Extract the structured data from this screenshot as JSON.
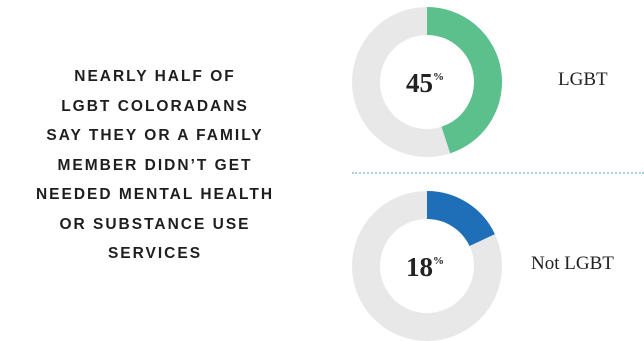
{
  "headline": [
    "NEARLY HALF OF",
    "LGBT COLORADANS",
    "SAY THEY OR A FAMILY",
    "MEMBER DIDN’T GET",
    "NEEDED MENTAL HEALTH",
    "OR SUBSTANCE USE",
    "SERVICES"
  ],
  "chart_data": {
    "type": "pie",
    "style": "donut",
    "unit": "%",
    "series": [
      {
        "name": "LGBT",
        "value": 45,
        "display": "45",
        "color": "#5cc08c"
      },
      {
        "name": "Not LGBT",
        "value": 18,
        "display": "18",
        "color": "#1f6fb8"
      }
    ],
    "track_color": "#e8e8e8"
  }
}
